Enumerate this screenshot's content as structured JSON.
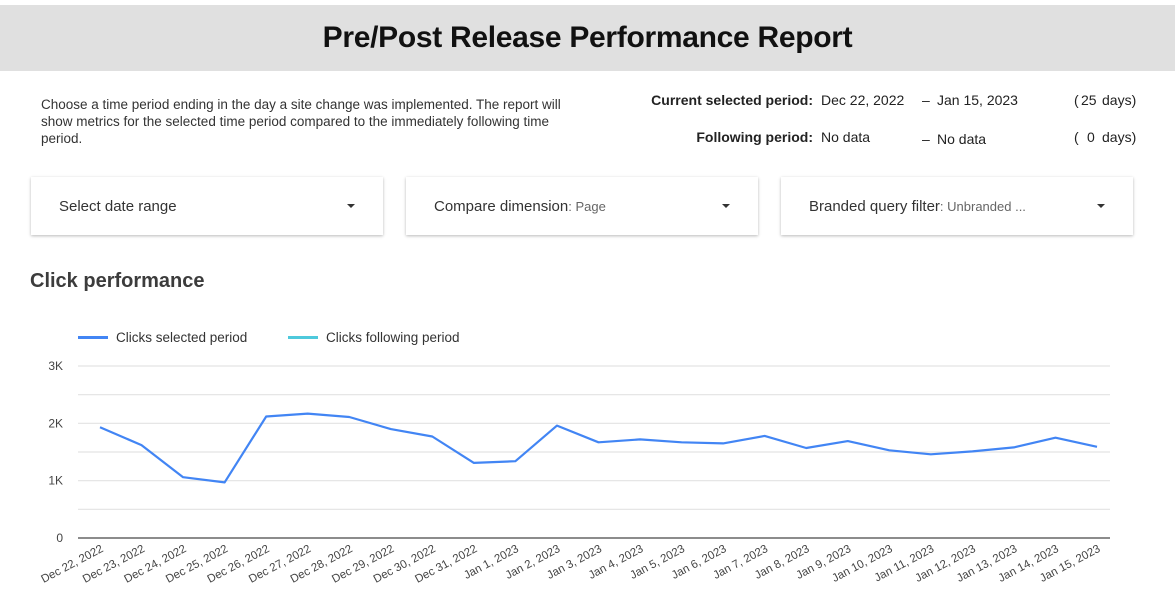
{
  "header": {
    "title": "Pre/Post Release Performance Report"
  },
  "intro": {
    "text": "Choose a time period ending in the day a site change was implemented. The report will show metrics for the selected time period compared to the immediately following time period."
  },
  "periods": {
    "current": {
      "label": "Current selected period:",
      "start": "Dec 22, 2022",
      "dash": "–",
      "end": "Jan 15, 2023",
      "open": "(",
      "days": "25",
      "days_label": "days)"
    },
    "following": {
      "label": "Following period:",
      "start": "No data",
      "dash": "–",
      "end": "No data",
      "open": "(",
      "days": "0",
      "days_label": "days)"
    }
  },
  "controls": {
    "date_range": {
      "label": "Select date range"
    },
    "compare_dimension": {
      "label": "Compare dimension",
      "sep": ":",
      "value": " Page"
    },
    "branded_filter": {
      "label": "Branded query filter",
      "sep": ":",
      "value": " Unbranded ..."
    }
  },
  "section": {
    "title": "Click performance"
  },
  "legend": [
    {
      "label": "Clicks selected period",
      "color": "#4285f4"
    },
    {
      "label": "Clicks following period",
      "color": "#4ec9dc"
    }
  ],
  "chart_data": {
    "type": "line",
    "title": "Click performance",
    "xlabel": "",
    "ylabel": "",
    "ylim": [
      0,
      3000
    ],
    "yticks": [
      "0",
      "1K",
      "2K",
      "3K"
    ],
    "grid": true,
    "legend_position": "top-left",
    "x": [
      "Dec 22, 2022",
      "Dec 23, 2022",
      "Dec 24, 2022",
      "Dec 25, 2022",
      "Dec 26, 2022",
      "Dec 27, 2022",
      "Dec 28, 2022",
      "Dec 29, 2022",
      "Dec 30, 2022",
      "Dec 31, 2022",
      "Jan 1, 2023",
      "Jan 2, 2023",
      "Jan 3, 2023",
      "Jan 4, 2023",
      "Jan 5, 2023",
      "Jan 6, 2023",
      "Jan 7, 2023",
      "Jan 8, 2023",
      "Jan 9, 2023",
      "Jan 10, 2023",
      "Jan 11, 2023",
      "Jan 12, 2023",
      "Jan 13, 2023",
      "Jan 14, 2023",
      "Jan 15, 2023"
    ],
    "series": [
      {
        "name": "Clicks selected period",
        "color": "#4285f4",
        "values": [
          1930,
          1620,
          1060,
          970,
          2120,
          2170,
          2110,
          1900,
          1770,
          1310,
          1340,
          1960,
          1670,
          1720,
          1670,
          1650,
          1780,
          1570,
          1690,
          1530,
          1460,
          1510,
          1580,
          1750,
          1590
        ]
      },
      {
        "name": "Clicks following period",
        "color": "#4ec9dc",
        "values": []
      }
    ]
  }
}
